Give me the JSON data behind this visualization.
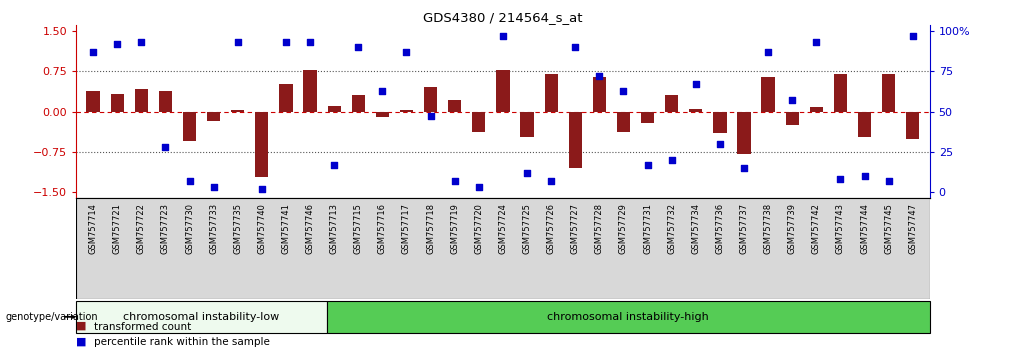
{
  "title": "GDS4380 / 214564_s_at",
  "samples": [
    "GSM757714",
    "GSM757721",
    "GSM757722",
    "GSM757723",
    "GSM757730",
    "GSM757733",
    "GSM757735",
    "GSM757740",
    "GSM757741",
    "GSM757746",
    "GSM757713",
    "GSM757715",
    "GSM757716",
    "GSM757717",
    "GSM757718",
    "GSM757719",
    "GSM757720",
    "GSM757724",
    "GSM757725",
    "GSM757726",
    "GSM757727",
    "GSM757728",
    "GSM757729",
    "GSM757731",
    "GSM757732",
    "GSM757734",
    "GSM757736",
    "GSM757737",
    "GSM757738",
    "GSM757739",
    "GSM757742",
    "GSM757743",
    "GSM757744",
    "GSM757745",
    "GSM757747"
  ],
  "transformed_count": [
    0.38,
    0.32,
    0.42,
    0.38,
    -0.55,
    -0.18,
    0.02,
    -1.22,
    0.52,
    0.78,
    0.1,
    0.3,
    -0.1,
    0.02,
    0.45,
    0.22,
    -0.38,
    0.78,
    -0.48,
    0.7,
    -1.05,
    0.65,
    -0.38,
    -0.22,
    0.3,
    0.05,
    -0.4,
    -0.8,
    0.65,
    -0.25,
    0.08,
    0.7,
    -0.48,
    0.7,
    -0.52
  ],
  "percentile_rank": [
    87,
    92,
    93,
    28,
    7,
    3,
    93,
    2,
    93,
    93,
    17,
    90,
    63,
    87,
    47,
    7,
    3,
    97,
    12,
    7,
    90,
    72,
    63,
    17,
    20,
    67,
    30,
    15,
    87,
    57,
    93,
    8,
    10,
    7,
    97
  ],
  "group_low_n": 10,
  "group_high_n": 25,
  "group_labels": [
    "chromosomal instability-low",
    "chromosomal instability-high"
  ],
  "bar_color": "#8B1A1A",
  "dot_color": "#0000CC",
  "yticks_left": [
    -1.5,
    -0.75,
    0.0,
    0.75,
    1.5
  ],
  "yticks_right": [
    0,
    25,
    50,
    75,
    100
  ],
  "ylim_left": [
    -1.62,
    1.62
  ],
  "dotted_line_color": "#555555",
  "zero_line_color": "#CC0000",
  "right_axis_color": "#0000CC",
  "left_axis_color": "#CC0000",
  "group_low_color": "#EEFAEE",
  "group_high_color": "#55CC55",
  "xtick_bg_color": "#D8D8D8",
  "title_color": "#000000"
}
